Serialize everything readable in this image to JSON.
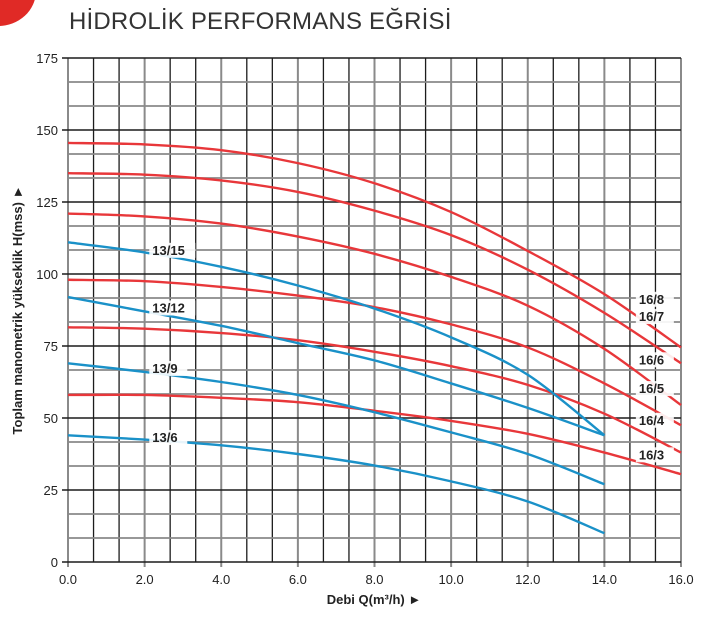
{
  "title": "HİDROLİK PERFORMANS EĞRİSİ",
  "colors": {
    "red_series": "#e8373a",
    "blue_series": "#1a91c8",
    "grid_dark": "#1c1c1c",
    "grid_gray": "#8a8a8a"
  },
  "chart_data": {
    "type": "line",
    "title": "HİDROLİK PERFORMANS EĞRİSİ",
    "xlabel": "Debi Q(m³/h) ►",
    "ylabel": "Toplam manometrik yükseklik H(mss) ►",
    "xlim": [
      0,
      16
    ],
    "ylim": [
      0,
      175
    ],
    "x_ticks": [
      "0.0",
      "2.0",
      "4.0",
      "6.0",
      "8.0",
      "10.0",
      "12.0",
      "14.0",
      "16.0"
    ],
    "y_ticks": [
      "0",
      "25",
      "50",
      "75",
      "100",
      "125",
      "150",
      "175"
    ],
    "grid": true,
    "series": [
      {
        "name": "16/8",
        "color": "red",
        "x": [
          0,
          2,
          4,
          6,
          8,
          10,
          12,
          14,
          16
        ],
        "y": [
          145.5,
          145,
          143,
          138.5,
          131.5,
          121.5,
          108,
          93,
          74.5
        ]
      },
      {
        "name": "16/7",
        "color": "red",
        "x": [
          0,
          2,
          4,
          6,
          8,
          10,
          12,
          14,
          16
        ],
        "y": [
          135,
          134.5,
          132.5,
          128.5,
          122,
          113.5,
          101.5,
          86.5,
          69
        ]
      },
      {
        "name": "16/6",
        "color": "red",
        "x": [
          0,
          2,
          4,
          6,
          8,
          10,
          12,
          14,
          16
        ],
        "y": [
          121,
          120,
          117.5,
          113,
          107,
          99,
          89,
          74,
          54.5
        ]
      },
      {
        "name": "16/5",
        "color": "red",
        "x": [
          0,
          2,
          4,
          6,
          8,
          10,
          12,
          14,
          16
        ],
        "y": [
          98,
          97.5,
          95.5,
          92.5,
          88.5,
          82.5,
          74.5,
          62,
          47.5
        ]
      },
      {
        "name": "16/4",
        "color": "red",
        "x": [
          0,
          2,
          4,
          6,
          8,
          10,
          12,
          14,
          16
        ],
        "y": [
          81.5,
          81,
          79.5,
          77,
          73,
          68,
          61.5,
          51.5,
          38
        ]
      },
      {
        "name": "16/3",
        "color": "red",
        "x": [
          0,
          2,
          4,
          6,
          8,
          10,
          12,
          14,
          16
        ],
        "y": [
          58,
          58,
          57,
          55.5,
          52.5,
          49,
          44.5,
          38,
          30.5
        ]
      },
      {
        "name": "13/15",
        "color": "blue",
        "x": [
          0,
          2,
          4,
          6,
          8,
          10,
          12,
          14
        ],
        "y": [
          111,
          107.5,
          102.5,
          96,
          88,
          78,
          65,
          44
        ]
      },
      {
        "name": "13/12",
        "color": "blue",
        "x": [
          0,
          2,
          4,
          6,
          8,
          10,
          12,
          14
        ],
        "y": [
          92,
          87,
          82,
          76,
          70,
          62,
          53.5,
          44
        ]
      },
      {
        "name": "13/9",
        "color": "blue",
        "x": [
          0,
          2,
          4,
          6,
          8,
          10,
          12,
          14
        ],
        "y": [
          69,
          66,
          62.5,
          58,
          52,
          45,
          37.5,
          27
        ]
      },
      {
        "name": "13/6",
        "color": "blue",
        "x": [
          0,
          2,
          4,
          6,
          8,
          10,
          12,
          14
        ],
        "y": [
          44,
          42.5,
          40.5,
          37.5,
          33.5,
          28,
          21,
          10
        ]
      }
    ],
    "labels": [
      {
        "text": "13/15",
        "x": 2.2,
        "y": 107
      },
      {
        "text": "13/12",
        "x": 2.2,
        "y": 87
      },
      {
        "text": "13/9",
        "x": 2.2,
        "y": 66
      },
      {
        "text": "13/6",
        "x": 2.2,
        "y": 42
      },
      {
        "text": "16/8",
        "x": 14.9,
        "y": 90
      },
      {
        "text": "16/7",
        "x": 14.9,
        "y": 84
      },
      {
        "text": "16/6",
        "x": 14.9,
        "y": 69
      },
      {
        "text": "16/5",
        "x": 14.9,
        "y": 59
      },
      {
        "text": "16/4",
        "x": 14.9,
        "y": 48
      },
      {
        "text": "16/3",
        "x": 14.9,
        "y": 36
      }
    ]
  }
}
